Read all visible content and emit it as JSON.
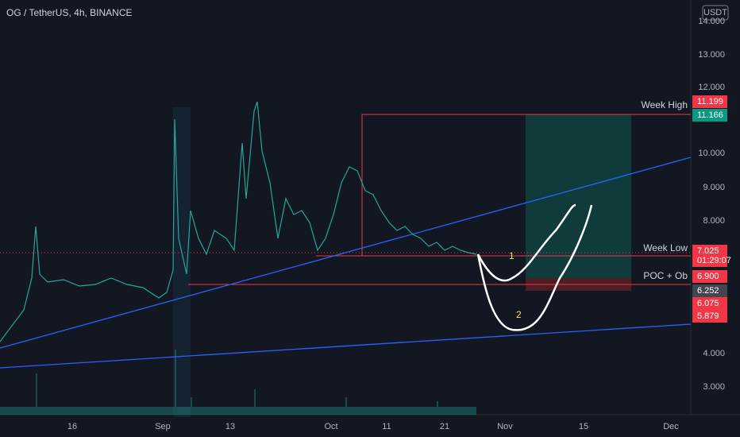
{
  "header": {
    "title": "OG / TetherUS, 4h, BINANCE",
    "currency": "USDT"
  },
  "price_axis": [
    "14.000",
    "13.000",
    "12.000",
    "10.000",
    "9.000",
    "8.000",
    "4.000",
    "3.000"
  ],
  "time_axis": [
    "16",
    "Sep",
    "13",
    "Oct",
    "11",
    "21",
    "Nov",
    "15",
    "Dec"
  ],
  "annotations": {
    "week_high": "Week High",
    "week_low": "Week Low",
    "poc": "POC + Ob",
    "path_1": "1",
    "path_2": "2"
  },
  "price_tags": {
    "week_high": "11.199",
    "target": "11.166",
    "last": "7.025",
    "countdown": "01:29:07",
    "poc_top": "6.900",
    "entry": "6.252",
    "poc_bottom": "6.075",
    "stop": "5.879"
  }
}
